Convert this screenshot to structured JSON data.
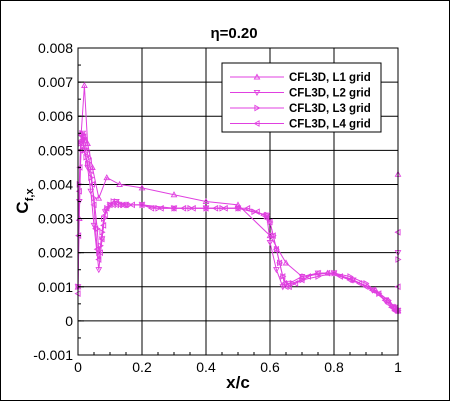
{
  "chart_data": {
    "type": "line",
    "title": "η=0.20",
    "xlabel": "x/c",
    "ylabel_base": "C",
    "ylabel_sub": "f,x",
    "xlim": [
      0,
      1
    ],
    "ylim": [
      -0.001,
      0.008
    ],
    "xticks": [
      "0",
      "0.2",
      "0.4",
      "0.6",
      "0.8",
      "1"
    ],
    "yticks": [
      "-0.001",
      "0",
      "0.001",
      "0.002",
      "0.003",
      "0.004",
      "0.005",
      "0.006",
      "0.007",
      "0.008"
    ],
    "grid": true,
    "legend_position": "top-right",
    "series_color": "#e040e0",
    "series": [
      {
        "name": "CFL3D, L1 grid",
        "marker": "triangle-up",
        "x": [
          0.0,
          0.004,
          0.01,
          0.02,
          0.03,
          0.045,
          0.065,
          0.09,
          0.13,
          0.2,
          0.3,
          0.4,
          0.5,
          0.6,
          0.65,
          0.7,
          0.78,
          0.86,
          0.93,
          0.97,
          0.99,
          1.0,
          1.0
        ],
        "y": [
          0.001,
          0.003,
          0.0055,
          0.0069,
          0.0052,
          0.0045,
          0.0036,
          0.0042,
          0.004,
          0.0039,
          0.0037,
          0.0035,
          0.0034,
          0.0025,
          0.0017,
          0.0013,
          0.0014,
          0.0012,
          0.0009,
          0.0006,
          0.0004,
          0.0003,
          0.0043
        ]
      },
      {
        "name": "CFL3D, L2 grid",
        "marker": "triangle-down",
        "x": [
          0.0,
          0.004,
          0.01,
          0.015,
          0.02,
          0.03,
          0.04,
          0.05,
          0.065,
          0.075,
          0.085,
          0.1,
          0.12,
          0.15,
          0.2,
          0.3,
          0.4,
          0.5,
          0.59,
          0.6,
          0.62,
          0.64,
          0.66,
          0.7,
          0.75,
          0.8,
          0.86,
          0.92,
          0.96,
          0.99,
          1.0,
          1.0
        ],
        "y": [
          0.001,
          0.0035,
          0.0052,
          0.0055,
          0.005,
          0.0045,
          0.0038,
          0.0028,
          0.0015,
          0.0024,
          0.0032,
          0.0034,
          0.0035,
          0.0034,
          0.0034,
          0.0033,
          0.0033,
          0.0033,
          0.0031,
          0.0023,
          0.0015,
          0.001,
          0.0011,
          0.0013,
          0.0014,
          0.0014,
          0.0012,
          0.0009,
          0.0006,
          0.0004,
          0.0003,
          0.002
        ]
      },
      {
        "name": "CFL3D, L3 grid",
        "marker": "triangle-right",
        "x": [
          0.0,
          0.004,
          0.008,
          0.012,
          0.016,
          0.02,
          0.025,
          0.03,
          0.04,
          0.05,
          0.06,
          0.065,
          0.07,
          0.075,
          0.08,
          0.09,
          0.1,
          0.11,
          0.12,
          0.14,
          0.16,
          0.2,
          0.25,
          0.3,
          0.35,
          0.4,
          0.45,
          0.5,
          0.55,
          0.59,
          0.6,
          0.61,
          0.62,
          0.63,
          0.64,
          0.65,
          0.67,
          0.7,
          0.75,
          0.8,
          0.85,
          0.9,
          0.94,
          0.97,
          0.99,
          1.0,
          1.0
        ],
        "y": [
          0.001,
          0.004,
          0.0052,
          0.0055,
          0.0053,
          0.005,
          0.0048,
          0.0046,
          0.0042,
          0.0036,
          0.0027,
          0.002,
          0.0022,
          0.0026,
          0.003,
          0.0033,
          0.0034,
          0.0035,
          0.0035,
          0.0034,
          0.0034,
          0.0034,
          0.0033,
          0.0033,
          0.0033,
          0.0033,
          0.0033,
          0.0033,
          0.0032,
          0.0031,
          0.0029,
          0.0025,
          0.0021,
          0.0017,
          0.0013,
          0.0011,
          0.0011,
          0.0012,
          0.0013,
          0.0014,
          0.0013,
          0.0011,
          0.0008,
          0.0006,
          0.0004,
          0.0003,
          0.0018
        ]
      },
      {
        "name": "CFL3D, L4 grid",
        "marker": "triangle-left",
        "x": [
          0.0,
          0.002,
          0.004,
          0.006,
          0.008,
          0.01,
          0.012,
          0.015,
          0.018,
          0.02,
          0.025,
          0.03,
          0.035,
          0.04,
          0.045,
          0.05,
          0.055,
          0.06,
          0.065,
          0.07,
          0.075,
          0.08,
          0.085,
          0.09,
          0.1,
          0.11,
          0.12,
          0.13,
          0.14,
          0.15,
          0.17,
          0.2,
          0.23,
          0.26,
          0.3,
          0.33,
          0.36,
          0.4,
          0.43,
          0.46,
          0.5,
          0.53,
          0.56,
          0.58,
          0.59,
          0.6,
          0.61,
          0.62,
          0.63,
          0.64,
          0.645,
          0.65,
          0.66,
          0.68,
          0.7,
          0.72,
          0.75,
          0.78,
          0.8,
          0.82,
          0.85,
          0.88,
          0.9,
          0.92,
          0.94,
          0.96,
          0.97,
          0.98,
          0.985,
          0.99,
          0.995,
          1.0,
          1.0,
          1.0
        ],
        "y": [
          0.0008,
          0.0025,
          0.0038,
          0.0045,
          0.005,
          0.0052,
          0.0053,
          0.0054,
          0.0054,
          0.0053,
          0.0051,
          0.0049,
          0.0047,
          0.0044,
          0.004,
          0.0034,
          0.0027,
          0.0021,
          0.0018,
          0.002,
          0.0024,
          0.0028,
          0.0031,
          0.0033,
          0.0034,
          0.0034,
          0.0034,
          0.0034,
          0.0034,
          0.0034,
          0.0034,
          0.0034,
          0.0033,
          0.0033,
          0.0033,
          0.0033,
          0.0033,
          0.0033,
          0.0033,
          0.0033,
          0.0033,
          0.0033,
          0.0032,
          0.0031,
          0.003,
          0.0029,
          0.0025,
          0.0021,
          0.0017,
          0.0013,
          0.0011,
          0.001,
          0.001,
          0.0011,
          0.0012,
          0.0013,
          0.0014,
          0.0014,
          0.0014,
          0.0013,
          0.0012,
          0.0011,
          0.001,
          0.0009,
          0.0008,
          0.0006,
          0.0005,
          0.0004,
          0.0004,
          0.0003,
          0.0003,
          0.0003,
          0.001,
          0.0026
        ]
      }
    ]
  }
}
